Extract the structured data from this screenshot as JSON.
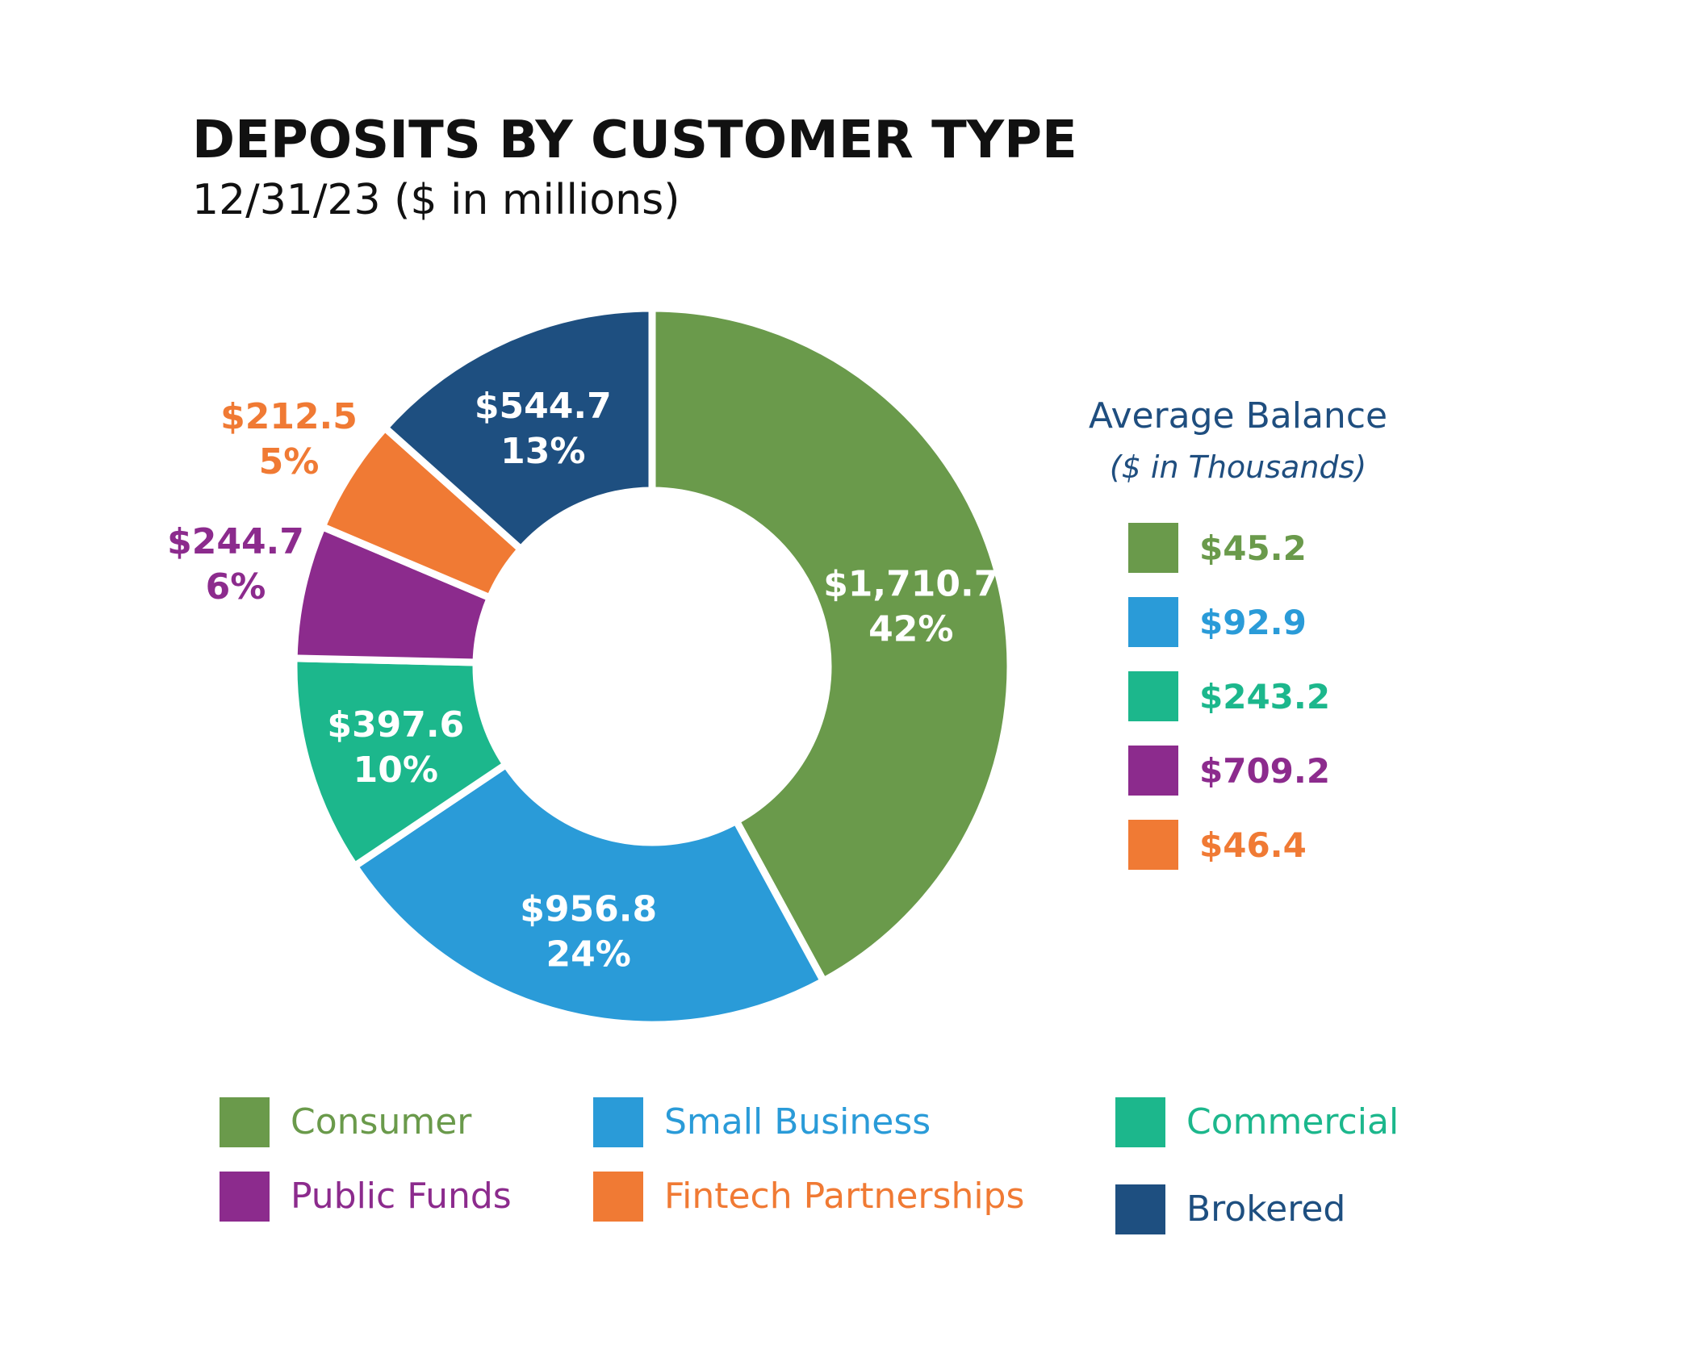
{
  "chart_data": {
    "type": "pie",
    "title": "DEPOSITS BY CUSTOMER TYPE",
    "subtitle": "12/31/23 ($ in millions)",
    "donut": true,
    "slices": [
      {
        "name": "Consumer",
        "value": 1710.7,
        "value_label": "$1,710.7",
        "percent_label": "42%",
        "color": "#6a9a4b"
      },
      {
        "name": "Small Business",
        "value": 956.8,
        "value_label": "$956.8",
        "percent_label": "24%",
        "color": "#2a9bd8"
      },
      {
        "name": "Commercial",
        "value": 397.6,
        "value_label": "$397.6",
        "percent_label": "10%",
        "color": "#1cb78c"
      },
      {
        "name": "Public Funds",
        "value": 244.7,
        "value_label": "$244.7",
        "percent_label": "6%",
        "color": "#8c2b8d"
      },
      {
        "name": "Fintech Partnerships",
        "value": 212.5,
        "value_label": "$212.5",
        "percent_label": "5%",
        "color": "#f07a34"
      },
      {
        "name": "Brokered",
        "value": 544.7,
        "value_label": "$544.7",
        "percent_label": "13%",
        "color": "#1e4f80"
      }
    ],
    "average_balance": {
      "title": "Average Balance",
      "subtitle": "($ in Thousands)",
      "entries": [
        {
          "label": "$45.2",
          "value": 45.2,
          "color": "#6a9a4b"
        },
        {
          "label": "$92.9",
          "value": 92.9,
          "color": "#2a9bd8"
        },
        {
          "label": "$243.2",
          "value": 243.2,
          "color": "#1cb78c"
        },
        {
          "label": "$709.2",
          "value": 709.2,
          "color": "#8c2b8d"
        },
        {
          "label": "$46.4",
          "value": 46.4,
          "color": "#f07a34"
        }
      ]
    },
    "legend": {
      "placement": "bottom",
      "entries": [
        {
          "label": "Consumer",
          "color": "#6a9a4b"
        },
        {
          "label": "Small Business",
          "color": "#2a9bd8"
        },
        {
          "label": "Commercial",
          "color": "#1cb78c"
        },
        {
          "label": "Public Funds",
          "color": "#8c2b8d"
        },
        {
          "label": "Fintech Partnerships",
          "color": "#f07a34"
        },
        {
          "label": "Brokered",
          "color": "#1e4f80"
        }
      ]
    }
  }
}
